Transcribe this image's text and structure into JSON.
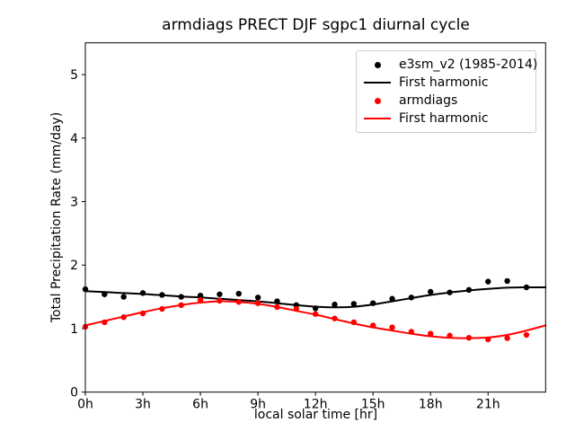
{
  "chart_data": {
    "type": "line",
    "title": "armdiags PRECT DJF sgpc1 diurnal cycle",
    "xlabel": "local solar time [hr]",
    "ylabel": "Total Precipitation Rate (mm/day)",
    "xlim": [
      0,
      24
    ],
    "ylim": [
      0,
      5.5
    ],
    "grid": false,
    "background_color": "#ffffff",
    "axis_color": "#000000",
    "x_ticks": {
      "hours": [
        0,
        3,
        6,
        9,
        12,
        15,
        18,
        21
      ],
      "labels": [
        "0h",
        "3h",
        "6h",
        "9h",
        "12h",
        "15h",
        "18h",
        "21h"
      ]
    },
    "y_ticks": {
      "values": [
        0,
        1,
        2,
        3,
        4,
        5
      ],
      "labels": [
        "0",
        "1",
        "2",
        "3",
        "4",
        "5"
      ]
    },
    "legend": {
      "position": "upper right",
      "entries": [
        {
          "label": "e3sm_v2 (1985-2014)",
          "marker": "dot",
          "color": "#000000"
        },
        {
          "label": "First harmonic",
          "marker": "line",
          "color": "#000000"
        },
        {
          "label": "armdiags",
          "marker": "dot",
          "color": "#ff0000"
        },
        {
          "label": "First harmonic",
          "marker": "line",
          "color": "#ff0000"
        }
      ]
    },
    "series": [
      {
        "name": "e3sm_v2 (1985-2014)",
        "style": "scatter",
        "color": "#000000",
        "marker_radius": 3.2,
        "x": [
          0,
          1,
          2,
          3,
          4,
          5,
          6,
          7,
          8,
          9,
          10,
          11,
          12,
          13,
          14,
          15,
          16,
          17,
          18,
          19,
          20,
          21,
          22,
          23
        ],
        "values": [
          1.62,
          1.54,
          1.5,
          1.56,
          1.53,
          1.5,
          1.52,
          1.54,
          1.55,
          1.49,
          1.43,
          1.37,
          1.32,
          1.38,
          1.39,
          1.4,
          1.47,
          1.49,
          1.58,
          1.57,
          1.61,
          1.74,
          1.75,
          1.65
        ]
      },
      {
        "name": "First harmonic",
        "style": "line",
        "color": "#000000",
        "line_width": 2,
        "x": [
          0,
          1,
          2,
          3,
          4,
          5,
          6,
          7,
          8,
          9,
          10,
          11,
          12,
          13,
          14,
          15,
          16,
          17,
          18,
          19,
          20,
          21,
          22,
          23,
          24
        ],
        "values": [
          1.59,
          1.575,
          1.56,
          1.545,
          1.525,
          1.505,
          1.49,
          1.47,
          1.45,
          1.43,
          1.4,
          1.37,
          1.345,
          1.335,
          1.345,
          1.38,
          1.43,
          1.48,
          1.53,
          1.57,
          1.6,
          1.625,
          1.645,
          1.65,
          1.65
        ]
      },
      {
        "name": "armdiags",
        "style": "scatter",
        "color": "#ff0000",
        "marker_radius": 3.2,
        "x": [
          0,
          1,
          2,
          3,
          4,
          5,
          6,
          7,
          8,
          9,
          10,
          11,
          12,
          13,
          14,
          15,
          16,
          17,
          18,
          19,
          20,
          21,
          22,
          23
        ],
        "values": [
          1.03,
          1.1,
          1.18,
          1.24,
          1.31,
          1.37,
          1.45,
          1.44,
          1.42,
          1.4,
          1.34,
          1.31,
          1.23,
          1.16,
          1.1,
          1.05,
          1.02,
          0.95,
          0.92,
          0.89,
          0.855,
          0.83,
          0.85,
          0.9
        ]
      },
      {
        "name": "First harmonic",
        "style": "line",
        "color": "#ff0000",
        "line_width": 2,
        "x": [
          0,
          1,
          2,
          3,
          4,
          5,
          6,
          7,
          8,
          9,
          10,
          11,
          12,
          13,
          14,
          15,
          16,
          17,
          18,
          19,
          20,
          21,
          22,
          23,
          24
        ],
        "values": [
          1.05,
          1.12,
          1.19,
          1.26,
          1.32,
          1.37,
          1.41,
          1.43,
          1.42,
          1.39,
          1.34,
          1.28,
          1.22,
          1.15,
          1.08,
          1.02,
          0.97,
          0.92,
          0.88,
          0.855,
          0.85,
          0.86,
          0.9,
          0.97,
          1.05
        ]
      }
    ]
  }
}
